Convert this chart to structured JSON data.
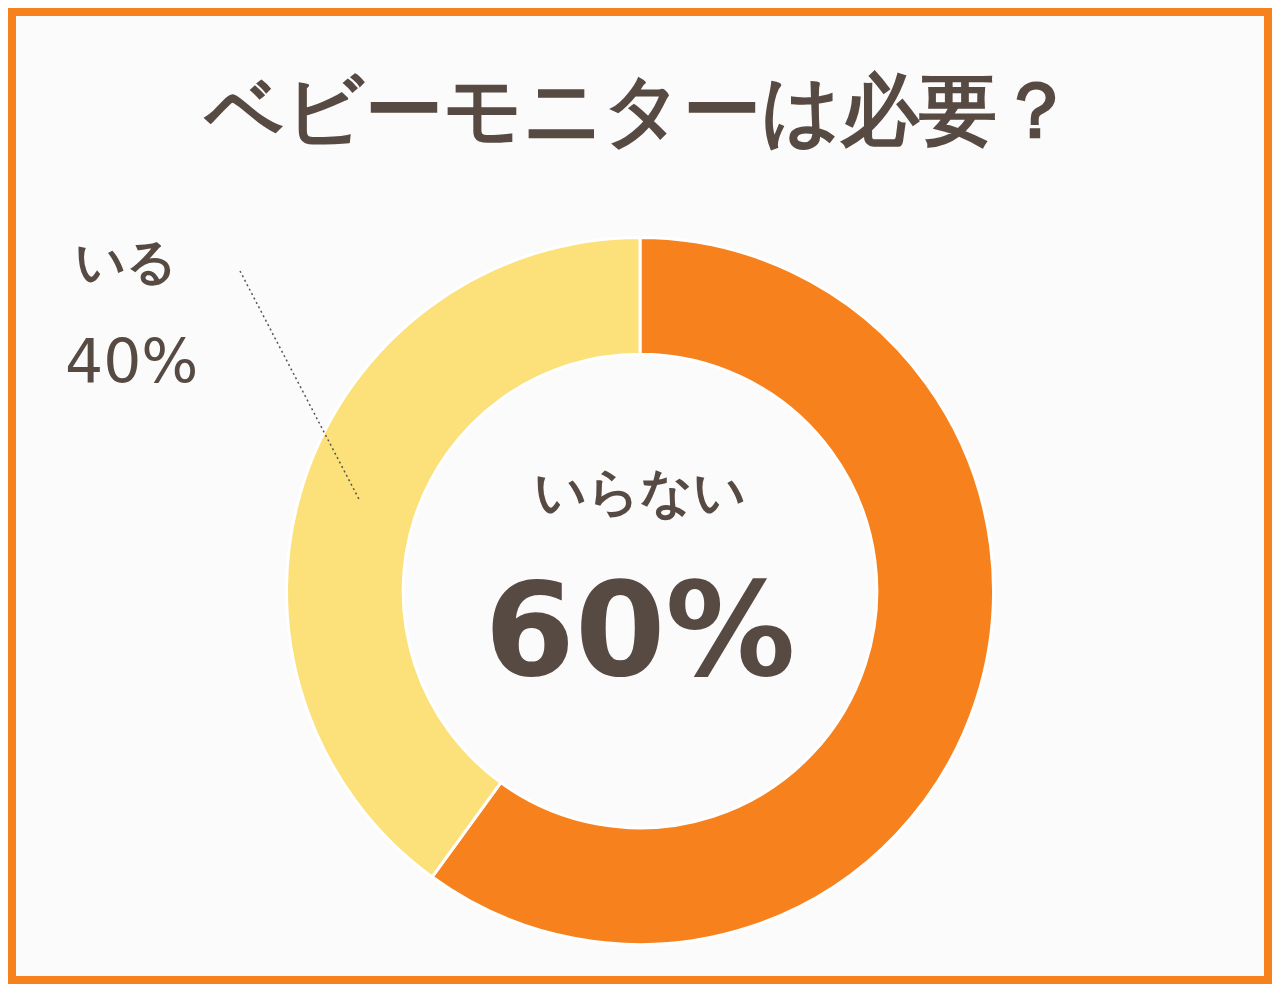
{
  "chart_data": {
    "type": "donut",
    "title": "ベビーモニターは必要？",
    "categories": [
      "いらない",
      "いる"
    ],
    "values": [
      60,
      40
    ],
    "colors": [
      "#f7811c",
      "#fce07a"
    ],
    "value_labels": [
      "60%",
      "40%"
    ]
  }
}
